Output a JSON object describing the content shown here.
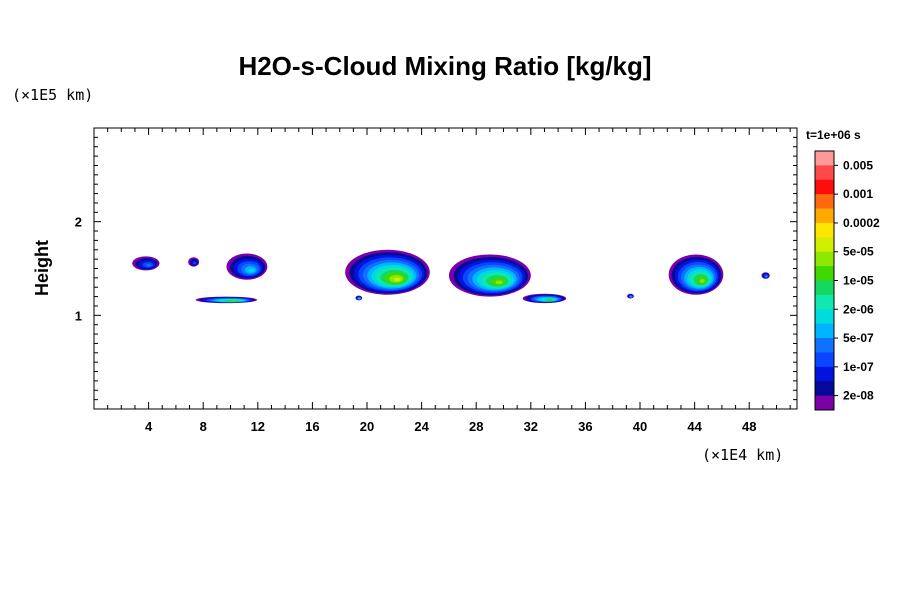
{
  "chart_data": {
    "type": "heatmap",
    "title": "H2O-s-Cloud Mixing Ratio [kg/kg]",
    "xlabel": "",
    "ylabel": "Height",
    "x_unit": "(×1E4 km)",
    "y_unit": "(×1E5 km)",
    "time_label": "t=1e+06 s",
    "xlim": [
      0,
      51.5
    ],
    "ylim": [
      0,
      3.0
    ],
    "x_ticks": [
      4,
      8,
      12,
      16,
      20,
      24,
      28,
      32,
      36,
      40,
      44,
      48
    ],
    "y_ticks": [
      1,
      2
    ],
    "colorbar": {
      "levels": [
        "0.005",
        "0.001",
        "0.0002",
        "5e-05",
        "1e-05",
        "2e-06",
        "5e-07",
        "1e-07",
        "2e-08"
      ],
      "colors": [
        "#ff9a9a",
        "#ff4848",
        "#ff0c0c",
        "#ff6a10",
        "#ffa800",
        "#ffe600",
        "#d0f000",
        "#8ee800",
        "#3fd800",
        "#14d860",
        "#10e8b0",
        "#00dcdc",
        "#00b4ff",
        "#1070ff",
        "#0a46ff",
        "#0014e0",
        "#080898",
        "#7a00a8"
      ]
    },
    "clouds": [
      {
        "x_center": 3.8,
        "width": 2.0,
        "top": 1.63,
        "bottom": 1.48,
        "peak_level": 13
      },
      {
        "x_center": 7.3,
        "width": 0.8,
        "top": 1.62,
        "bottom": 1.52,
        "peak_level": 14
      },
      {
        "x_center": 11.2,
        "width": 3.0,
        "top": 1.66,
        "bottom": 1.38,
        "peak_level": 11
      },
      {
        "x_center": 21.5,
        "width": 6.2,
        "top": 1.7,
        "bottom": 1.22,
        "peak_level": 6
      },
      {
        "x_center": 29.0,
        "width": 6.0,
        "top": 1.65,
        "bottom": 1.2,
        "peak_level": 7
      },
      {
        "x_center": 44.1,
        "width": 4.0,
        "top": 1.65,
        "bottom": 1.22,
        "peak_level": 7
      },
      {
        "x_center": 9.7,
        "width": 4.5,
        "top": 1.2,
        "bottom": 1.13,
        "peak_level": 7
      },
      {
        "x_center": 33.0,
        "width": 3.2,
        "top": 1.23,
        "bottom": 1.13,
        "peak_level": 8
      },
      {
        "x_center": 19.4,
        "width": 0.5,
        "top": 1.21,
        "bottom": 1.16,
        "peak_level": 10
      },
      {
        "x_center": 39.3,
        "width": 0.5,
        "top": 1.23,
        "bottom": 1.18,
        "peak_level": 11
      },
      {
        "x_center": 49.2,
        "width": 0.6,
        "top": 1.46,
        "bottom": 1.39,
        "peak_level": 12
      }
    ]
  }
}
